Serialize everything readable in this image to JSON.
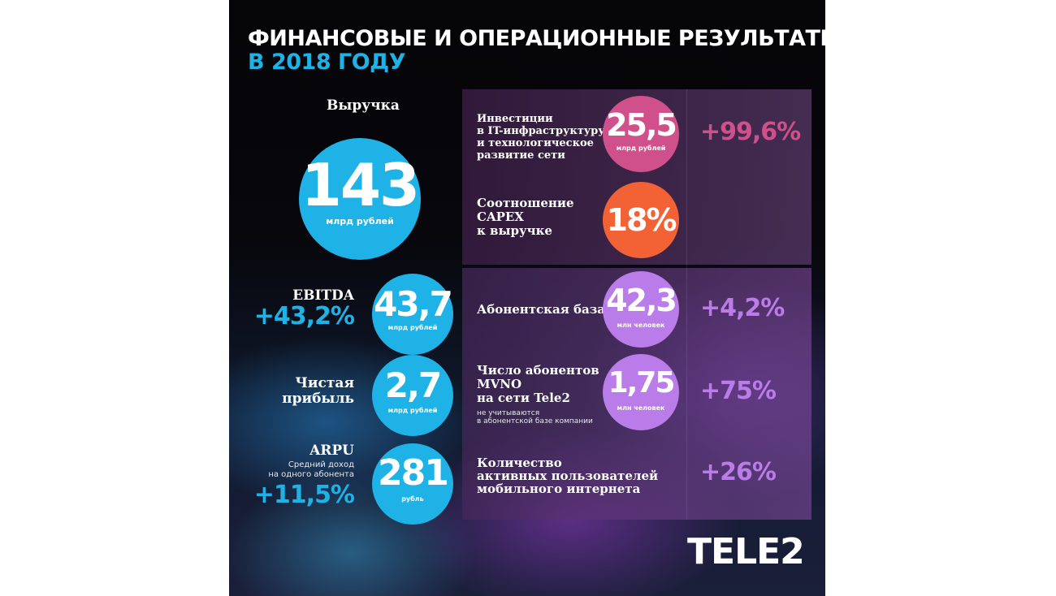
{
  "title": {
    "line1": "ФИНАНСОВЫЕ И ОПЕРАЦИОННЫЕ РЕЗУЛЬТАТЫ",
    "line2": "В 2018 ГОДУ"
  },
  "colors": {
    "blue": "#1fb2e6",
    "pink": "#d0508c",
    "orange": "#f26235",
    "violet": "#b97ce8",
    "background": "#07070c"
  },
  "revenue": {
    "label": "Выручка",
    "value": "143",
    "unit": "млрд рублей"
  },
  "ebitda": {
    "label": "EBITDA",
    "change": "+43,2%",
    "value": "43,7",
    "unit": "млрд рублей"
  },
  "net_profit": {
    "label_line1": "Чистая",
    "label_line2": "прибыль",
    "value": "2,7",
    "unit": "млрд рублей"
  },
  "arpu": {
    "label": "ARPU",
    "desc_line1": "Средний доход",
    "desc_line2": "на одного абонента",
    "change": "+11,5%",
    "value": "281",
    "unit": "рубль"
  },
  "investments": {
    "label_line1": "Инвестиции",
    "label_line2": "в IT-инфраструктуру",
    "label_line3": "и технологическое",
    "label_line4": "развитие сети",
    "value": "25,5",
    "unit": "млрд рублей",
    "change": "+99,6%"
  },
  "capex_ratio": {
    "label_line1": "Соотношение",
    "label_line2": "CAPEX",
    "label_line3": "к выручке",
    "value": "18%"
  },
  "subscriber_base": {
    "label": "Абонентская база",
    "value": "42,3",
    "unit": "млн человек",
    "change": "+4,2%"
  },
  "mvno": {
    "label_line1": "Число абонентов",
    "label_line2": "MVNO",
    "label_line3": "на сети Tele2",
    "note_line1": "не учитываются",
    "note_line2": "в абонентской базе компании",
    "value": "1,75",
    "unit": "млн человек",
    "change": "+75%"
  },
  "mobile_internet": {
    "label_line1": "Количество",
    "label_line2": "активных пользователей",
    "label_line3": "мобильного интернета",
    "change": "+26%"
  },
  "logo": "TELE2"
}
